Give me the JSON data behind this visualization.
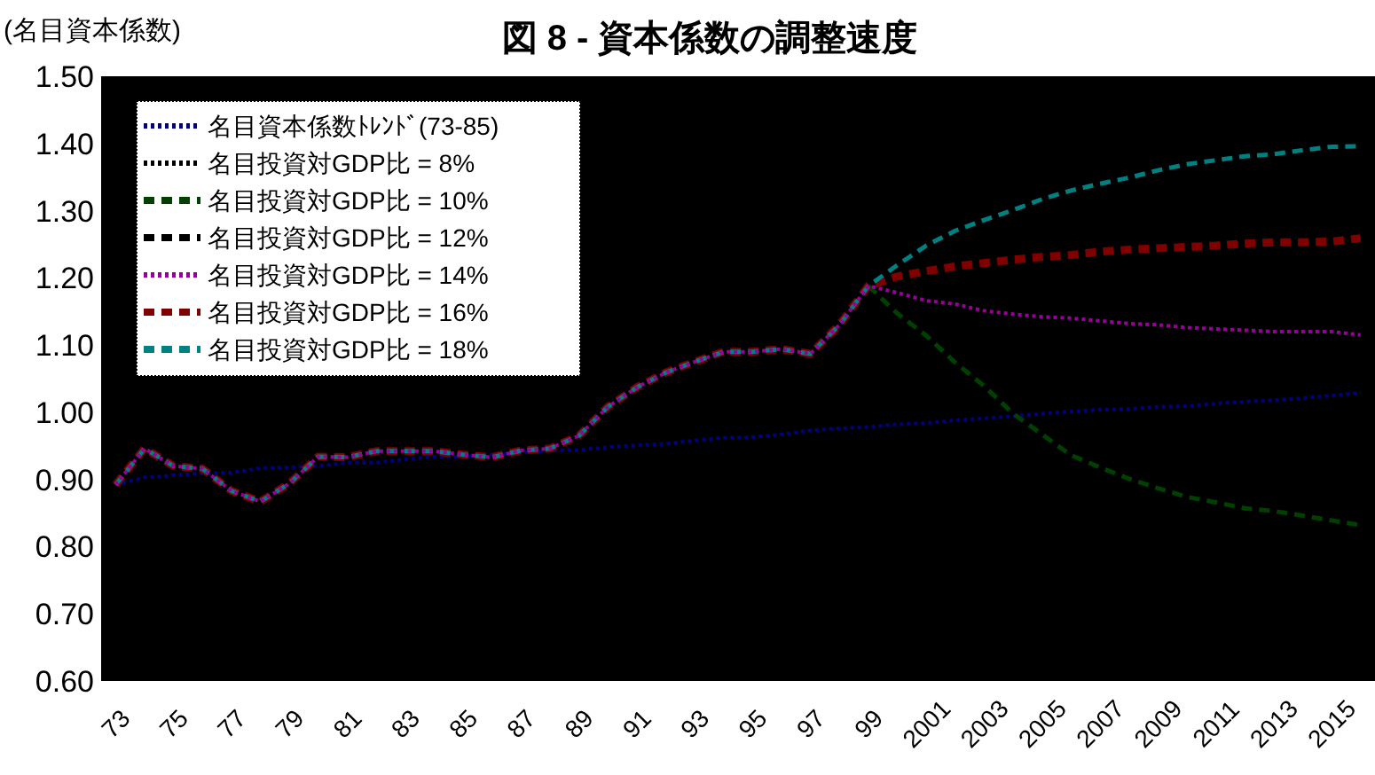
{
  "chart_data": {
    "type": "line",
    "title": "図 8 - 資本係数の調整速度",
    "ylabel": "(名目資本係数)",
    "categories": [
      "73",
      null,
      "75",
      null,
      "77",
      null,
      "79",
      null,
      "81",
      null,
      "83",
      null,
      "85",
      null,
      "87",
      null,
      "89",
      null,
      "91",
      null,
      "93",
      null,
      "95",
      null,
      "97",
      null,
      "99",
      null,
      "2001",
      null,
      "2003",
      null,
      "2005",
      null,
      "2007",
      null,
      "2009",
      null,
      "2011",
      null,
      "2013",
      null,
      "2015",
      null
    ],
    "ylim": [
      0.6,
      1.5
    ],
    "yticks": [
      {
        "value": 0.6,
        "label": "0.60"
      },
      {
        "value": 0.7,
        "label": "0.70"
      },
      {
        "value": 0.8,
        "label": "0.80"
      },
      {
        "value": 0.9,
        "label": "0.90"
      },
      {
        "value": 1.0,
        "label": "1.00"
      },
      {
        "value": 1.1,
        "label": "1.10"
      },
      {
        "value": 1.2,
        "label": "1.20"
      },
      {
        "value": 1.3,
        "label": "1.30"
      },
      {
        "value": 1.4,
        "label": "1.40"
      },
      {
        "value": 1.5,
        "label": "1.50"
      }
    ],
    "legend": "top left",
    "grid": false,
    "marker": "none",
    "series": [
      {
        "name": "名目資本係数ﾄﾚﾝﾄﾞ(73-85)",
        "color": "#000080",
        "line_style": "dotted",
        "values": [
          0.892,
          0.903,
          0.906,
          0.909,
          0.91,
          0.917,
          0.918,
          0.92,
          0.925,
          0.925,
          0.93,
          0.934,
          0.934,
          0.937,
          0.94,
          0.943,
          0.944,
          0.948,
          0.951,
          0.953,
          0.958,
          0.962,
          0.963,
          0.967,
          0.973,
          0.976,
          0.978,
          0.982,
          0.984,
          0.988,
          0.991,
          0.994,
          0.998,
          1.001,
          1.004,
          1.005,
          1.008,
          1.009,
          1.013,
          1.016,
          1.018,
          1.021,
          1.025,
          1.029
        ]
      },
      {
        "name": "名目投資対GDP比 = 8%",
        "color": "#000000",
        "line_style": "dotted",
        "values": [
          null,
          null,
          null,
          null,
          null,
          null,
          null,
          null,
          null,
          null,
          null,
          null,
          null,
          null,
          null,
          null,
          null,
          null,
          null,
          null,
          null,
          null,
          null,
          null,
          null,
          null,
          null,
          null,
          null,
          null,
          null,
          null,
          null,
          null,
          null,
          null,
          null,
          null,
          null,
          null,
          null,
          null,
          null,
          null
        ]
      },
      {
        "name": "名目投資対GDP比 = 10%",
        "color": "#004000",
        "line_style": "dashed",
        "values": [
          null,
          null,
          null,
          null,
          null,
          null,
          null,
          null,
          null,
          null,
          null,
          null,
          null,
          null,
          null,
          null,
          null,
          null,
          null,
          null,
          null,
          null,
          null,
          null,
          null,
          null,
          1.188,
          1.147,
          1.114,
          1.074,
          1.039,
          0.998,
          0.967,
          0.936,
          0.918,
          0.901,
          0.887,
          0.874,
          0.866,
          0.857,
          0.853,
          0.846,
          0.839,
          0.832
        ]
      },
      {
        "name": "名目投資対GDP比 = 12%",
        "color": "#000000",
        "line_style": "dashed",
        "values": [
          null,
          null,
          null,
          null,
          null,
          null,
          null,
          null,
          null,
          null,
          null,
          null,
          null,
          null,
          null,
          null,
          null,
          null,
          null,
          null,
          null,
          null,
          null,
          null,
          null,
          null,
          null,
          null,
          null,
          null,
          null,
          null,
          null,
          null,
          null,
          null,
          null,
          null,
          null,
          null,
          null,
          null,
          null,
          null
        ]
      },
      {
        "name": "名目投資対GDP比 = 14%",
        "color": "#990099",
        "line_style": "dotted",
        "values": [
          0.892,
          0.946,
          0.92,
          0.916,
          0.883,
          0.867,
          0.894,
          0.934,
          0.933,
          0.942,
          0.942,
          0.942,
          0.937,
          0.933,
          0.943,
          0.946,
          0.965,
          1.008,
          1.037,
          1.059,
          1.075,
          1.09,
          1.09,
          1.094,
          1.087,
          1.13,
          1.188,
          1.178,
          1.166,
          1.161,
          1.151,
          1.146,
          1.142,
          1.14,
          1.136,
          1.132,
          1.13,
          1.126,
          1.124,
          1.122,
          1.12,
          1.12,
          1.12,
          1.115
        ]
      },
      {
        "name": "名目投資対GDP比 = 16%",
        "color": "#800000",
        "line_style": "dashed",
        "values": [
          0.892,
          0.946,
          0.92,
          0.916,
          0.883,
          0.867,
          0.894,
          0.934,
          0.933,
          0.942,
          0.942,
          0.942,
          0.937,
          0.933,
          0.943,
          0.946,
          0.965,
          1.008,
          1.037,
          1.059,
          1.075,
          1.09,
          1.09,
          1.094,
          1.087,
          1.13,
          1.188,
          1.202,
          1.21,
          1.217,
          1.222,
          1.227,
          1.231,
          1.234,
          1.239,
          1.242,
          1.244,
          1.246,
          1.248,
          1.251,
          1.253,
          1.253,
          1.254,
          1.259
        ]
      },
      {
        "name": "名目投資対GDP比 = 18%",
        "color": "#008080",
        "line_style": "dashed",
        "values": [
          0.892,
          0.946,
          0.92,
          0.916,
          0.883,
          0.867,
          0.894,
          0.934,
          0.933,
          0.942,
          0.942,
          0.942,
          0.937,
          0.933,
          0.943,
          0.946,
          0.965,
          1.008,
          1.037,
          1.059,
          1.075,
          1.09,
          1.09,
          1.094,
          1.087,
          1.13,
          1.188,
          1.219,
          1.248,
          1.27,
          1.286,
          1.301,
          1.317,
          1.33,
          1.34,
          1.349,
          1.36,
          1.369,
          1.375,
          1.381,
          1.384,
          1.39,
          1.395,
          1.396
        ]
      }
    ]
  }
}
